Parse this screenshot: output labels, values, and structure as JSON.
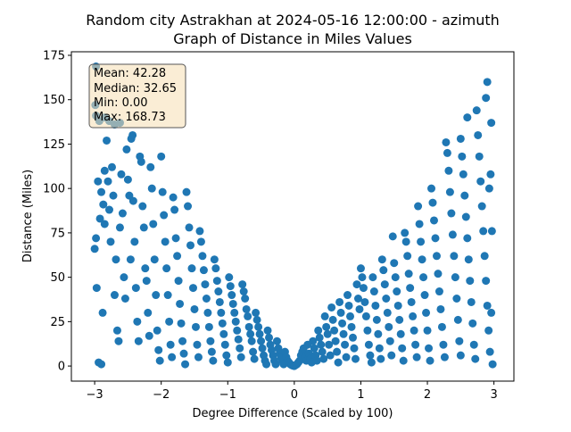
{
  "chart_data": {
    "type": "scatter",
    "title": "Random city Astrakhan at 2024-05-16 12:00:00  - azimuth",
    "subtitle": "Graph of Distance in Miles Values",
    "xlabel": "Degree Difference (Scaled by 100)",
    "ylabel": "Distance (Miles)",
    "xlim": [
      -3.35,
      3.3
    ],
    "ylim": [
      -8.5,
      177
    ],
    "x_ticks": [
      -3,
      -2,
      -1,
      0,
      1,
      2,
      3
    ],
    "y_ticks": [
      0,
      25,
      50,
      75,
      100,
      125,
      150,
      175
    ],
    "grid": false,
    "stats_box": {
      "mean": "Mean: 42.28",
      "median": "Median: 32.65",
      "min": "Min: 0.00",
      "max": "Max: 168.73"
    },
    "point_color": "#1f77b4",
    "stats_box_color": "#f5deb3",
    "series": [
      {
        "points": [
          [
            -2.98,
            168.7
          ],
          [
            -2.99,
            147
          ],
          [
            -2.98,
            141
          ],
          [
            -2.93,
            138
          ],
          [
            -2.85,
            140
          ],
          [
            -2.78,
            138
          ],
          [
            -2.7,
            136
          ],
          [
            -2.62,
            137
          ],
          [
            -2.97,
            44
          ],
          [
            -2.98,
            72
          ],
          [
            -3.0,
            66
          ],
          [
            -2.94,
            2
          ],
          [
            -2.9,
            1
          ],
          [
            -2.95,
            104
          ],
          [
            -2.92,
            83
          ],
          [
            -2.9,
            98
          ],
          [
            -2.87,
            91
          ],
          [
            -2.85,
            80
          ],
          [
            -2.88,
            30
          ],
          [
            -2.85,
            110
          ],
          [
            -2.82,
            127
          ],
          [
            -2.8,
            104
          ],
          [
            -2.78,
            88
          ],
          [
            -2.76,
            70
          ],
          [
            -2.74,
            112
          ],
          [
            -2.72,
            96
          ],
          [
            -2.7,
            40
          ],
          [
            -2.68,
            60
          ],
          [
            -2.66,
            20
          ],
          [
            -2.64,
            14
          ],
          [
            -2.62,
            78
          ],
          [
            -2.6,
            108
          ],
          [
            -2.58,
            86
          ],
          [
            -2.56,
            50
          ],
          [
            -2.54,
            38
          ],
          [
            -2.52,
            122
          ],
          [
            -2.5,
            105
          ],
          [
            -2.48,
            96
          ],
          [
            -2.46,
            60
          ],
          [
            -2.45,
            128
          ],
          [
            -2.43,
            130
          ],
          [
            -2.42,
            93
          ],
          [
            -2.4,
            70
          ],
          [
            -2.38,
            44
          ],
          [
            -2.36,
            25
          ],
          [
            -2.34,
            14
          ],
          [
            -2.32,
            118
          ],
          [
            -2.3,
            115
          ],
          [
            -2.28,
            90
          ],
          [
            -2.26,
            78
          ],
          [
            -2.24,
            55
          ],
          [
            -2.22,
            48
          ],
          [
            -2.2,
            30
          ],
          [
            -2.18,
            17
          ],
          [
            -2.16,
            112
          ],
          [
            -2.14,
            100
          ],
          [
            -2.12,
            80
          ],
          [
            -2.1,
            60
          ],
          [
            -2.08,
            40
          ],
          [
            -2.06,
            20
          ],
          [
            -2.04,
            9
          ],
          [
            -2.02,
            3
          ],
          [
            -2.0,
            118
          ],
          [
            -1.98,
            98
          ],
          [
            -1.96,
            85
          ],
          [
            -1.94,
            70
          ],
          [
            -1.92,
            55
          ],
          [
            -1.9,
            40
          ],
          [
            -1.88,
            25
          ],
          [
            -1.86,
            12
          ],
          [
            -1.84,
            5
          ],
          [
            -1.82,
            95
          ],
          [
            -1.8,
            88
          ],
          [
            -1.78,
            72
          ],
          [
            -1.76,
            62
          ],
          [
            -1.74,
            48
          ],
          [
            -1.72,
            35
          ],
          [
            -1.7,
            24
          ],
          [
            -1.68,
            14
          ],
          [
            -1.66,
            7
          ],
          [
            -1.64,
            1
          ],
          [
            -1.62,
            98
          ],
          [
            -1.6,
            90
          ],
          [
            -1.58,
            78
          ],
          [
            -1.56,
            68
          ],
          [
            -1.54,
            55
          ],
          [
            -1.52,
            44
          ],
          [
            -1.5,
            32
          ],
          [
            -1.48,
            22
          ],
          [
            -1.46,
            12
          ],
          [
            -1.44,
            5
          ],
          [
            -1.42,
            76
          ],
          [
            -1.4,
            70
          ],
          [
            -1.38,
            62
          ],
          [
            -1.36,
            54
          ],
          [
            -1.34,
            46
          ],
          [
            -1.32,
            38
          ],
          [
            -1.3,
            30
          ],
          [
            -1.28,
            22
          ],
          [
            -1.26,
            14
          ],
          [
            -1.24,
            8
          ],
          [
            -1.22,
            3
          ],
          [
            -1.2,
            60
          ],
          [
            -1.18,
            55
          ],
          [
            -1.16,
            48
          ],
          [
            -1.14,
            42
          ],
          [
            -1.12,
            36
          ],
          [
            -1.1,
            30
          ],
          [
            -1.08,
            24
          ],
          [
            -1.06,
            18
          ],
          [
            -1.04,
            12
          ],
          [
            -1.02,
            6
          ],
          [
            -1.0,
            2
          ],
          [
            -0.98,
            50
          ],
          [
            -0.96,
            45
          ],
          [
            -0.94,
            40
          ],
          [
            -0.92,
            35
          ],
          [
            -0.9,
            30
          ],
          [
            -0.88,
            25
          ],
          [
            -0.86,
            20
          ],
          [
            -0.84,
            15
          ],
          [
            -0.82,
            10
          ],
          [
            -0.8,
            5
          ],
          [
            -0.78,
            46
          ],
          [
            -0.76,
            42
          ],
          [
            -0.74,
            38
          ],
          [
            -0.72,
            32
          ],
          [
            -0.7,
            28
          ],
          [
            -0.68,
            22
          ],
          [
            -0.66,
            18
          ],
          [
            -0.64,
            14
          ],
          [
            -0.62,
            8
          ],
          [
            -0.6,
            4
          ],
          [
            -0.58,
            30
          ],
          [
            -0.56,
            26
          ],
          [
            -0.54,
            22
          ],
          [
            -0.52,
            18
          ],
          [
            -0.5,
            14
          ],
          [
            -0.48,
            10
          ],
          [
            -0.46,
            6
          ],
          [
            -0.44,
            3
          ],
          [
            -0.42,
            1
          ],
          [
            -0.4,
            20
          ],
          [
            -0.38,
            16
          ],
          [
            -0.36,
            12
          ],
          [
            -0.34,
            9
          ],
          [
            -0.32,
            6
          ],
          [
            -0.3,
            3
          ],
          [
            -0.28,
            1
          ],
          [
            -0.26,
            14
          ],
          [
            -0.24,
            10
          ],
          [
            -0.22,
            7
          ],
          [
            -0.2,
            5
          ],
          [
            -0.18,
            3
          ],
          [
            -0.16,
            1
          ],
          [
            -0.14,
            8
          ],
          [
            -0.12,
            5
          ],
          [
            -0.1,
            3
          ],
          [
            -0.08,
            2
          ],
          [
            -0.06,
            1
          ],
          [
            -0.04,
            0.5
          ],
          [
            -0.02,
            0.2
          ],
          [
            0.0,
            0.0
          ],
          [
            0.02,
            0.5
          ],
          [
            0.04,
            1
          ],
          [
            0.06,
            2
          ],
          [
            0.08,
            3
          ],
          [
            0.1,
            6
          ],
          [
            0.12,
            8
          ],
          [
            0.14,
            10
          ],
          [
            0.16,
            5
          ],
          [
            0.18,
            3
          ],
          [
            0.2,
            12
          ],
          [
            0.22,
            7
          ],
          [
            0.24,
            4
          ],
          [
            0.26,
            2
          ],
          [
            0.28,
            14
          ],
          [
            0.3,
            10
          ],
          [
            0.32,
            6
          ],
          [
            0.34,
            3
          ],
          [
            0.36,
            20
          ],
          [
            0.38,
            16
          ],
          [
            0.4,
            12
          ],
          [
            0.42,
            8
          ],
          [
            0.44,
            4
          ],
          [
            0.46,
            28
          ],
          [
            0.48,
            22
          ],
          [
            0.5,
            18
          ],
          [
            0.52,
            12
          ],
          [
            0.54,
            6
          ],
          [
            0.56,
            33
          ],
          [
            0.58,
            26
          ],
          [
            0.6,
            20
          ],
          [
            0.62,
            14
          ],
          [
            0.64,
            8
          ],
          [
            0.66,
            2
          ],
          [
            0.68,
            36
          ],
          [
            0.7,
            30
          ],
          [
            0.72,
            24
          ],
          [
            0.74,
            18
          ],
          [
            0.76,
            12
          ],
          [
            0.78,
            5
          ],
          [
            0.8,
            40
          ],
          [
            0.82,
            34
          ],
          [
            0.84,
            28
          ],
          [
            0.86,
            22
          ],
          [
            0.88,
            16
          ],
          [
            0.9,
            10
          ],
          [
            0.92,
            4
          ],
          [
            0.94,
            46
          ],
          [
            0.96,
            38
          ],
          [
            0.98,
            32
          ],
          [
            1.0,
            55
          ],
          [
            1.02,
            50
          ],
          [
            1.04,
            44
          ],
          [
            1.06,
            36
          ],
          [
            1.08,
            28
          ],
          [
            1.1,
            20
          ],
          [
            1.12,
            12
          ],
          [
            1.14,
            6
          ],
          [
            1.16,
            2
          ],
          [
            1.18,
            50
          ],
          [
            1.2,
            42
          ],
          [
            1.22,
            34
          ],
          [
            1.24,
            26
          ],
          [
            1.26,
            18
          ],
          [
            1.28,
            10
          ],
          [
            1.3,
            4
          ],
          [
            1.32,
            60
          ],
          [
            1.34,
            54
          ],
          [
            1.36,
            46
          ],
          [
            1.38,
            38
          ],
          [
            1.4,
            30
          ],
          [
            1.42,
            22
          ],
          [
            1.44,
            14
          ],
          [
            1.46,
            6
          ],
          [
            1.48,
            73
          ],
          [
            1.5,
            58
          ],
          [
            1.52,
            50
          ],
          [
            1.54,
            42
          ],
          [
            1.56,
            34
          ],
          [
            1.58,
            26
          ],
          [
            1.6,
            18
          ],
          [
            1.62,
            10
          ],
          [
            1.64,
            3
          ],
          [
            1.66,
            75
          ],
          [
            1.68,
            70
          ],
          [
            1.7,
            62
          ],
          [
            1.72,
            52
          ],
          [
            1.74,
            44
          ],
          [
            1.76,
            36
          ],
          [
            1.78,
            28
          ],
          [
            1.8,
            20
          ],
          [
            1.82,
            12
          ],
          [
            1.84,
            5
          ],
          [
            1.86,
            90
          ],
          [
            1.88,
            80
          ],
          [
            1.9,
            70
          ],
          [
            1.92,
            60
          ],
          [
            1.94,
            50
          ],
          [
            1.96,
            40
          ],
          [
            1.98,
            30
          ],
          [
            2.0,
            20
          ],
          [
            2.02,
            10
          ],
          [
            2.04,
            3
          ],
          [
            2.06,
            100
          ],
          [
            2.08,
            92
          ],
          [
            2.1,
            82
          ],
          [
            2.12,
            72
          ],
          [
            2.14,
            62
          ],
          [
            2.16,
            52
          ],
          [
            2.18,
            42
          ],
          [
            2.2,
            32
          ],
          [
            2.22,
            22
          ],
          [
            2.24,
            12
          ],
          [
            2.26,
            5
          ],
          [
            2.28,
            126
          ],
          [
            2.3,
            120
          ],
          [
            2.32,
            110
          ],
          [
            2.34,
            98
          ],
          [
            2.36,
            86
          ],
          [
            2.38,
            74
          ],
          [
            2.4,
            62
          ],
          [
            2.42,
            50
          ],
          [
            2.44,
            38
          ],
          [
            2.46,
            26
          ],
          [
            2.48,
            14
          ],
          [
            2.5,
            6
          ],
          [
            2.52,
            118
          ],
          [
            2.54,
            108
          ],
          [
            2.56,
            96
          ],
          [
            2.58,
            84
          ],
          [
            2.6,
            72
          ],
          [
            2.62,
            60
          ],
          [
            2.64,
            48
          ],
          [
            2.66,
            36
          ],
          [
            2.68,
            24
          ],
          [
            2.7,
            12
          ],
          [
            2.72,
            4
          ],
          [
            2.74,
            144
          ],
          [
            2.76,
            130
          ],
          [
            2.78,
            118
          ],
          [
            2.8,
            104
          ],
          [
            2.82,
            90
          ],
          [
            2.84,
            76
          ],
          [
            2.86,
            62
          ],
          [
            2.88,
            48
          ],
          [
            2.9,
            34
          ],
          [
            2.92,
            20
          ],
          [
            2.94,
            8
          ],
          [
            2.9,
            160
          ],
          [
            2.88,
            151
          ],
          [
            2.96,
            137
          ],
          [
            2.95,
            108
          ],
          [
            2.93,
            100
          ],
          [
            2.97,
            76
          ],
          [
            2.96,
            30
          ],
          [
            2.98,
            1
          ],
          [
            2.6,
            140
          ],
          [
            2.5,
            128
          ]
        ]
      }
    ]
  }
}
